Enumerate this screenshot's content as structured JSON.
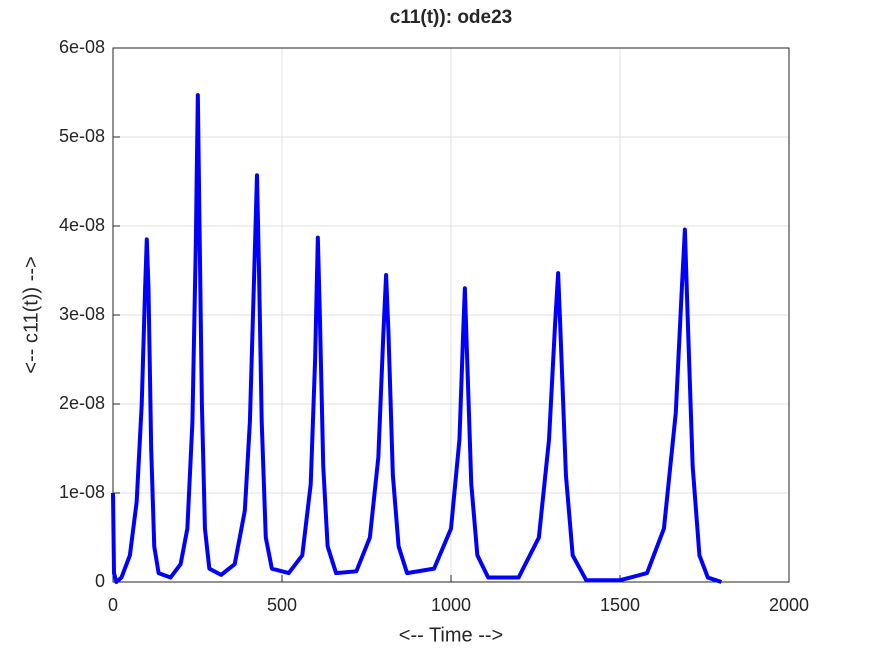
{
  "chart_data": {
    "type": "line",
    "title": "c11(t)): ode23",
    "xlabel": "<-- Time -->",
    "ylabel": "<-- c11(t)) -->",
    "xlim": [
      0,
      2000
    ],
    "xticks": [
      0,
      500,
      1000,
      1500,
      2000
    ],
    "ylim": [
      0,
      6e-08
    ],
    "yticks": [
      0,
      {
        "value": 1e-08,
        "label": "1e-08"
      },
      {
        "value": 2e-08,
        "label": "2e-08"
      },
      {
        "value": 3e-08,
        "label": "3e-08"
      },
      {
        "value": 4e-08,
        "label": "4e-08"
      },
      {
        "value": 5e-08,
        "label": "5e-08"
      },
      {
        "value": 6e-08,
        "label": "6e-08"
      }
    ],
    "grid": true,
    "x": [
      0,
      3,
      10,
      25,
      50,
      70,
      85,
      95,
      100,
      105,
      113,
      122,
      135,
      170,
      200,
      220,
      235,
      245,
      251,
      256,
      263,
      272,
      285,
      320,
      360,
      390,
      405,
      418,
      426,
      432,
      440,
      452,
      470,
      520,
      560,
      585,
      598,
      606,
      612,
      622,
      635,
      660,
      720,
      760,
      785,
      800,
      808,
      815,
      828,
      845,
      870,
      950,
      1000,
      1025,
      1036,
      1041,
      1047,
      1060,
      1078,
      1110,
      1200,
      1260,
      1290,
      1308,
      1317,
      1324,
      1340,
      1360,
      1400,
      1500,
      1580,
      1630,
      1665,
      1683,
      1692,
      1700,
      1715,
      1735,
      1760,
      1800
    ],
    "series": [
      {
        "color": "#0000ff",
        "values": [
          1e-08,
          1e-09,
          0.0,
          5e-10,
          3e-09,
          9e-09,
          2e-08,
          3.3e-08,
          3.85e-08,
          3.3e-08,
          1.5e-08,
          4e-09,
          1e-09,
          5e-10,
          2e-09,
          6e-09,
          1.8e-08,
          3.8e-08,
          5.47e-08,
          4e-08,
          2e-08,
          6e-09,
          1.5e-09,
          8e-10,
          2e-09,
          8e-09,
          1.8e-08,
          3.5e-08,
          4.57e-08,
          3.5e-08,
          1.8e-08,
          5e-09,
          1.5e-09,
          1e-09,
          3e-09,
          1.1e-08,
          2.5e-08,
          3.87e-08,
          3e-08,
          1.3e-08,
          4e-09,
          1e-09,
          1.2e-09,
          5e-09,
          1.4e-08,
          2.8e-08,
          3.45e-08,
          2.8e-08,
          1.2e-08,
          4e-09,
          1e-09,
          1.5e-09,
          6e-09,
          1.6e-08,
          2.8e-08,
          3.3e-08,
          2.6e-08,
          1.1e-08,
          3e-09,
          5e-10,
          5e-10,
          5e-09,
          1.6e-08,
          2.9e-08,
          3.47e-08,
          2.8e-08,
          1.2e-08,
          3e-09,
          2e-10,
          2e-10,
          1e-09,
          6e-09,
          1.9e-08,
          3.3e-08,
          3.96e-08,
          3e-08,
          1.3e-08,
          3e-09,
          5e-10,
          0.0
        ]
      }
    ]
  }
}
